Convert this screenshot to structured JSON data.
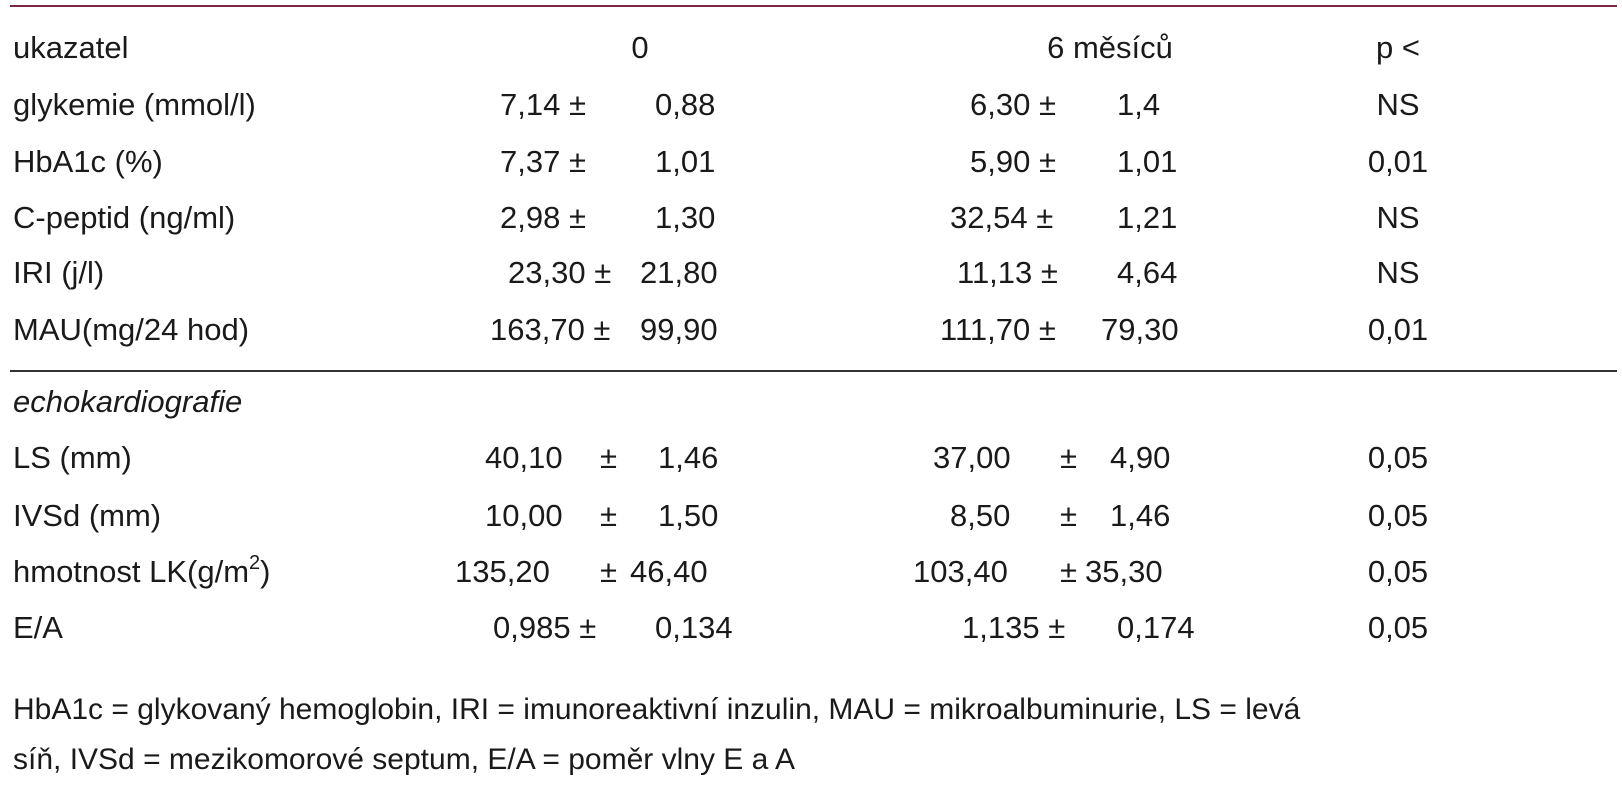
{
  "header": {
    "label": "ukazatel",
    "col0": "0",
    "col6": "6 měsíců",
    "colp": "p <"
  },
  "rows_lab": [
    {
      "label": "glykemie (mmol/l)",
      "v0": "7,14 ±",
      "sd0": "0,88",
      "v6": "6,30 ±",
      "sd6": "1,4",
      "p": "NS"
    },
    {
      "label": "HbA1c (%)",
      "v0": "7,37 ±",
      "sd0": "1,01",
      "v6": "5,90 ±",
      "sd6": "1,01",
      "p": "0,01"
    },
    {
      "label": "C-peptid (ng/ml)",
      "v0": "2,98 ±",
      "sd0": "1,30",
      "v6": "32,54 ±",
      "sd6": "1,21",
      "p": "NS"
    },
    {
      "label": "IRI (j/l)",
      "v0": "23,30 ±",
      "sd0": "21,80",
      "v6": "11,13 ±",
      "sd6": "4,64",
      "p": "NS"
    },
    {
      "label": "MAU(mg/24 hod)",
      "v0": "163,70 ±",
      "sd0": "99,90",
      "v6": "111,70 ±",
      "sd6": "79,30",
      "p": "0,01"
    }
  ],
  "section_label": "echokardiografie",
  "rows_echo": [
    {
      "label": "LS (mm)",
      "v0": "40,10",
      "pm0": "±",
      "sd0": "1,46",
      "v6": "37,00",
      "pm6": "±",
      "sd6": "4,90",
      "p": "0,05"
    },
    {
      "label": "IVSd (mm)",
      "v0": "10,00",
      "pm0": "±",
      "sd0": "1,50",
      "v6": "8,50",
      "pm6": "±",
      "sd6": "1,46",
      "p": "0,05"
    },
    {
      "label_main": "hmotnost LK(g/m",
      "label_sup": "2",
      "label_end": ")",
      "v0": "135,20",
      "pm0": "±",
      "sd0": "46,40",
      "v6": "103,40",
      "pm6": "±",
      "sd6": "35,30",
      "p": "0,05"
    },
    {
      "label": "E/A",
      "v0": "0,985 ±",
      "sd0": "0,134",
      "v6": "1,135 ±",
      "sd6": "0,174",
      "p": "0,05"
    }
  ],
  "footnote": {
    "line1": "HbA1c = glykovaný hemoglobin, IRI = imunoreaktivní inzulin, MAU = mikroalbuminurie, LS = levá",
    "line2": "síň, IVSd = mezikomorové septum, E/A = poměr vlny E a A"
  },
  "colors": {
    "top_rule": "#7a2846",
    "text": "#1a1a1a"
  }
}
